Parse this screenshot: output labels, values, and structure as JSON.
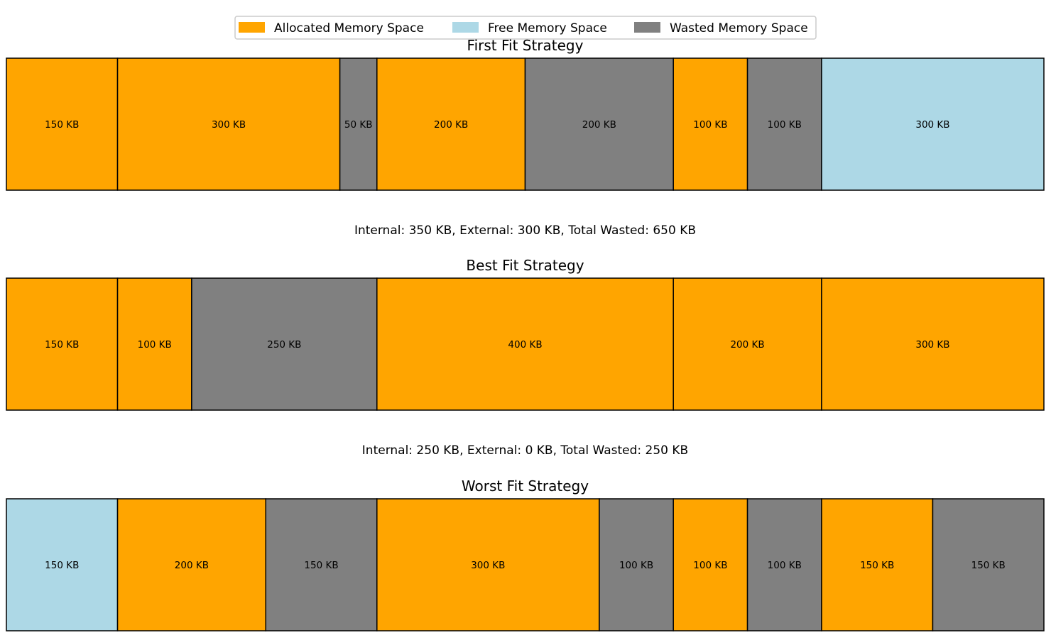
{
  "chart_data": {
    "type": "bar",
    "orientation": "horizontal-stacked",
    "unit": "KB",
    "legend": {
      "placement": "top-center",
      "entries": [
        {
          "key": "allocated",
          "label": "Allocated Memory Space",
          "color": "#ffa500"
        },
        {
          "key": "free",
          "label": "Free Memory Space",
          "color": "#add8e6"
        },
        {
          "key": "wasted",
          "label": "Wasted Memory Space",
          "color": "#808080"
        }
      ]
    },
    "grid": false,
    "panels": [
      {
        "title": "First Fit Strategy",
        "blocks": [
          {
            "size": 150,
            "label": "150 KB",
            "kind": "allocated"
          },
          {
            "size": 300,
            "label": "300 KB",
            "kind": "allocated"
          },
          {
            "size": 50,
            "label": "50 KB",
            "kind": "wasted"
          },
          {
            "size": 200,
            "label": "200 KB",
            "kind": "allocated"
          },
          {
            "size": 200,
            "label": "200 KB",
            "kind": "wasted"
          },
          {
            "size": 100,
            "label": "100 KB",
            "kind": "allocated"
          },
          {
            "size": 100,
            "label": "100 KB",
            "kind": "wasted"
          },
          {
            "size": 300,
            "label": "300 KB",
            "kind": "free"
          }
        ],
        "summary": "Internal: 350 KB, External: 300 KB, Total Wasted: 650 KB"
      },
      {
        "title": "Best Fit Strategy",
        "blocks": [
          {
            "size": 150,
            "label": "150 KB",
            "kind": "allocated"
          },
          {
            "size": 100,
            "label": "100 KB",
            "kind": "allocated"
          },
          {
            "size": 250,
            "label": "250 KB",
            "kind": "wasted"
          },
          {
            "size": 400,
            "label": "400 KB",
            "kind": "allocated"
          },
          {
            "size": 200,
            "label": "200 KB",
            "kind": "allocated"
          },
          {
            "size": 300,
            "label": "300 KB",
            "kind": "allocated"
          }
        ],
        "summary": "Internal: 250 KB, External: 0 KB, Total Wasted: 250 KB"
      },
      {
        "title": "Worst Fit Strategy",
        "blocks": [
          {
            "size": 150,
            "label": "150 KB",
            "kind": "free"
          },
          {
            "size": 200,
            "label": "200 KB",
            "kind": "allocated"
          },
          {
            "size": 150,
            "label": "150 KB",
            "kind": "wasted"
          },
          {
            "size": 300,
            "label": "300 KB",
            "kind": "allocated"
          },
          {
            "size": 100,
            "label": "100 KB",
            "kind": "wasted"
          },
          {
            "size": 100,
            "label": "100 KB",
            "kind": "allocated"
          },
          {
            "size": 100,
            "label": "100 KB",
            "kind": "wasted"
          },
          {
            "size": 150,
            "label": "150 KB",
            "kind": "allocated"
          },
          {
            "size": 150,
            "label": "150 KB",
            "kind": "wasted"
          }
        ]
      }
    ]
  }
}
